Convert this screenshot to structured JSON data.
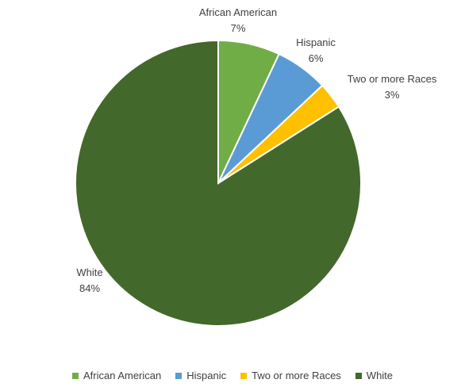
{
  "chart_data": {
    "type": "pie",
    "title": "",
    "categories": [
      "African American",
      "Hispanic",
      "Two or more Races",
      "White"
    ],
    "values": [
      7,
      6,
      3,
      84
    ],
    "value_labels": [
      "7%",
      "6%",
      "3%",
      "84%"
    ],
    "colors": [
      "#70AD47",
      "#5B9BD5",
      "#FFC000",
      "#43682B"
    ],
    "start_angle": "12 o'clock",
    "direction": "clockwise",
    "legend_position": "bottom"
  }
}
